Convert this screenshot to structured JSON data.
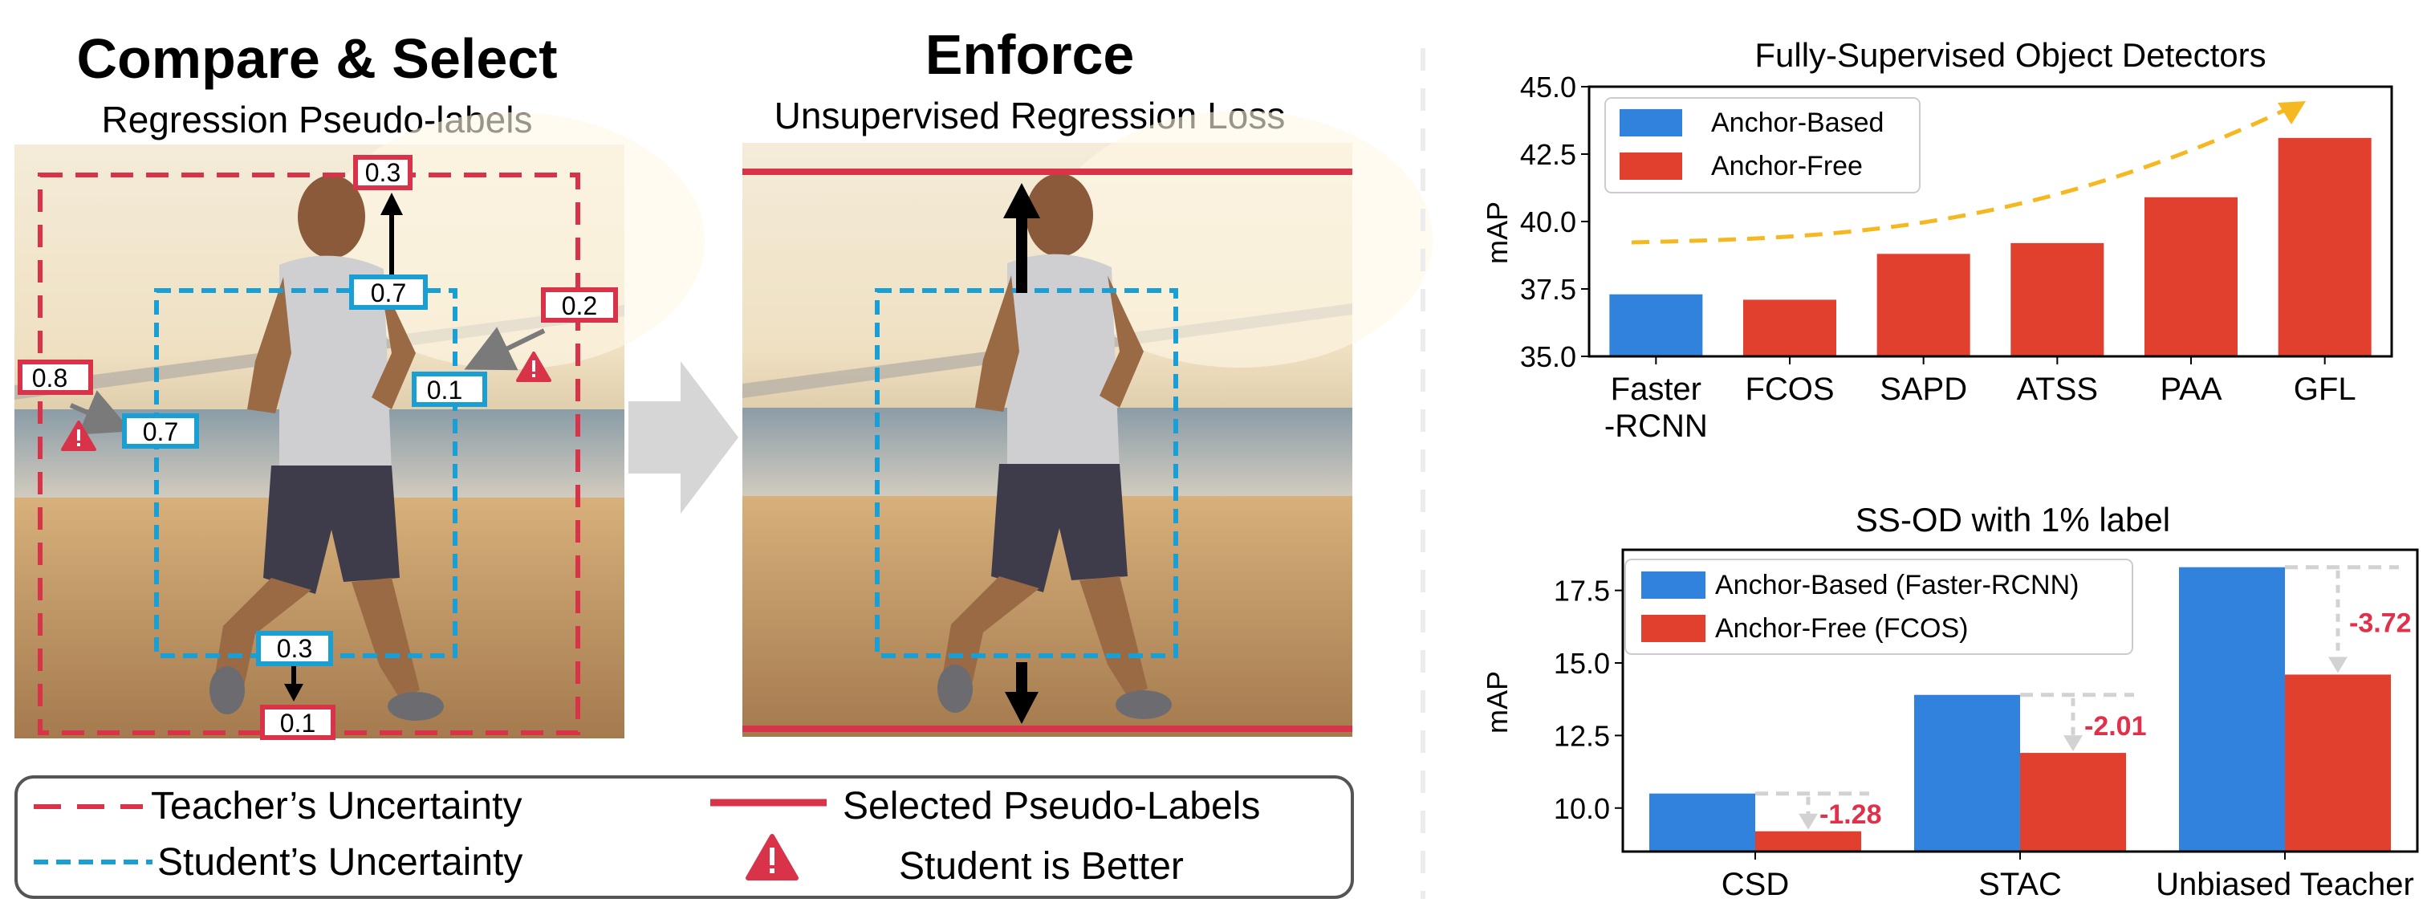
{
  "left_panel": {
    "title": "Compare & Select",
    "subtitle": "Regression Pseudo-labels",
    "teacher_box_labels": {
      "top": "0.3",
      "right": "0.2",
      "left": "0.8",
      "bottom": "0.1"
    },
    "student_box_labels": {
      "top": "0.7",
      "right": "0.1",
      "left": "0.7",
      "bottom": "0.3"
    }
  },
  "middle_panel": {
    "title": "Enforce",
    "subtitle": "Unsupervised Regression Loss"
  },
  "legend": {
    "teacher": "Teacher’s Uncertainty",
    "student": "Student’s Uncertainty",
    "selected": "Selected Pseudo-Labels",
    "better": "Student is Better"
  },
  "colors": {
    "teacher_red": "#d9334a",
    "student_blue": "#1a9fd4",
    "bar_blue": "#3182dc",
    "bar_red": "#e0402d",
    "trend": "#f5b820",
    "delta": "#e0304a",
    "arrow_gray": "#d9d9d9"
  },
  "chart_data": [
    {
      "type": "bar",
      "title": "Fully-Supervised Object Detectors",
      "ylabel": "mAP",
      "ylim": [
        35.0,
        45.0
      ],
      "yticks": [
        "35.0",
        "37.5",
        "40.0",
        "42.5",
        "45.0"
      ],
      "categories": [
        "Faster\n-RCNN",
        "FCOS",
        "SAPD",
        "ATSS",
        "PAA",
        "GFL"
      ],
      "values": [
        37.3,
        37.1,
        38.8,
        39.2,
        40.9,
        43.1
      ],
      "bar_series": [
        "anchor_based",
        "anchor_free",
        "anchor_free",
        "anchor_free",
        "anchor_free",
        "anchor_free"
      ],
      "legend": [
        "Anchor-Based",
        "Anchor-Free"
      ],
      "legend_position": "top-left"
    },
    {
      "type": "bar",
      "title": "SS-OD with 1% label",
      "ylabel": "mAP",
      "ylim": [
        8.5,
        18.9
      ],
      "yticks": [
        "10.0",
        "12.5",
        "15.0",
        "17.5"
      ],
      "categories": [
        "CSD",
        "STAC",
        "Unbiased Teacher"
      ],
      "series": [
        {
          "name": "Anchor-Based (Faster-RCNN)",
          "values": [
            10.5,
            13.9,
            18.3
          ]
        },
        {
          "name": "Anchor-Free (FCOS)",
          "values": [
            9.2,
            11.9,
            14.6
          ]
        }
      ],
      "deltas": [
        "-1.28",
        "-2.01",
        "-3.72"
      ],
      "legend_position": "top-left"
    }
  ]
}
